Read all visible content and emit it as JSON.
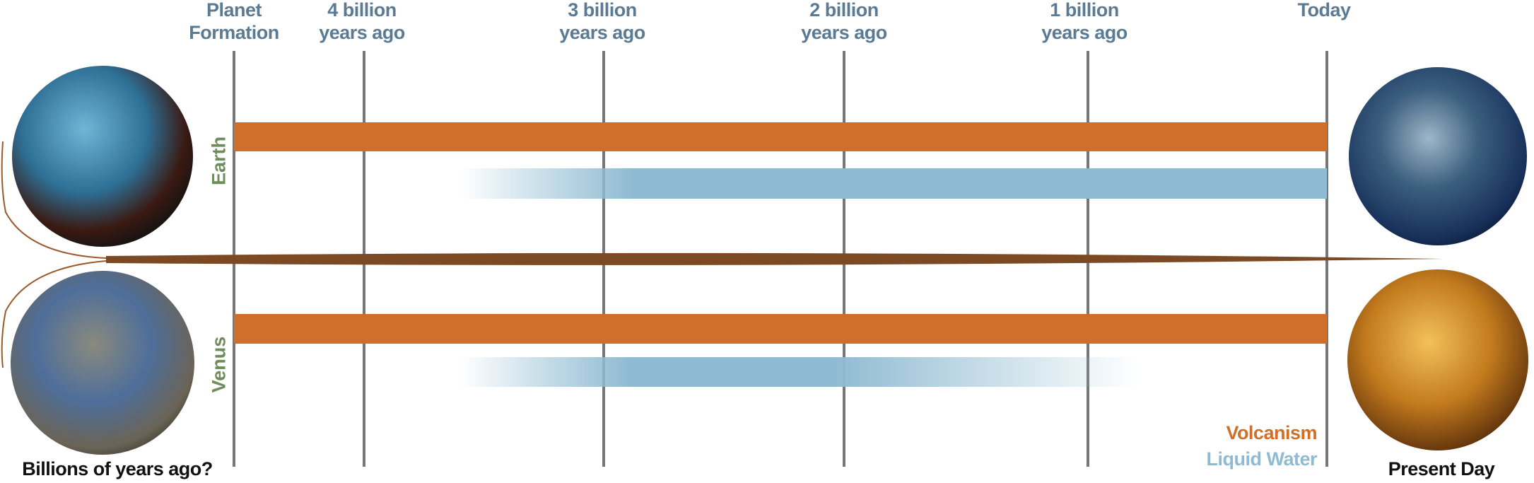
{
  "timeline": {
    "ticks": [
      "Planet Formation",
      "4 billion years ago",
      "3 billion years ago",
      "2 billion years ago",
      "1 billion years ago",
      "Today"
    ]
  },
  "rows": [
    "Earth",
    "Venus"
  ],
  "legend": [
    "Volcanism",
    "Liquid Water"
  ],
  "captions": {
    "past": "Billions of years ago?",
    "present": "Present Day"
  }
}
